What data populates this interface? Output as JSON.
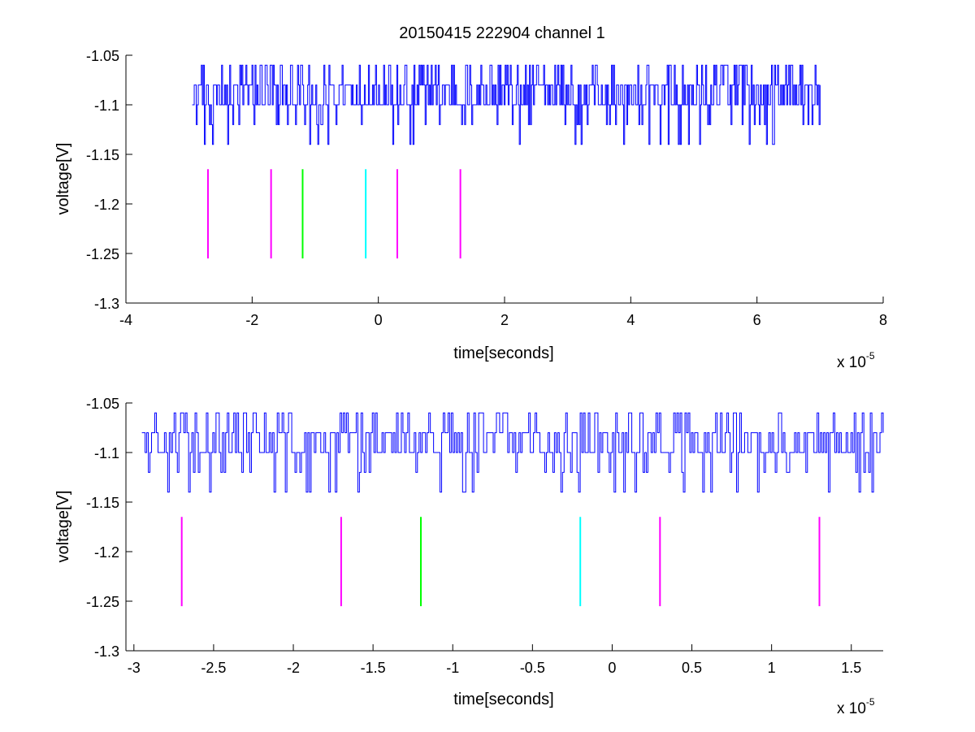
{
  "figure": {
    "title": "20150415 222904 channel 1",
    "background": "#ffffff"
  },
  "chart_data": [
    {
      "type": "line",
      "title": "20150415 222904 channel 1",
      "xlabel": "time[seconds]",
      "ylabel": "voltage[V]",
      "x_multiplier_label": "x 10",
      "x_multiplier_exponent": "-5",
      "xlim": [
        -4,
        8
      ],
      "ylim": [
        -1.3,
        -1.05
      ],
      "xticks": [
        -4,
        -2,
        0,
        2,
        4,
        6,
        8
      ],
      "xtick_labels": [
        "-4",
        "-2",
        "0",
        "2",
        "4",
        "6",
        "8"
      ],
      "yticks": [
        -1.05,
        -1.1,
        -1.15,
        -1.2,
        -1.25,
        -1.3
      ],
      "ytick_labels": [
        "-1.05",
        "-1.1",
        "-1.15",
        "-1.2",
        "-1.25",
        "-1.3"
      ],
      "grid": false,
      "signal": {
        "color": "#0000ff",
        "x_range": [
          -2.95,
          7.0
        ],
        "levels": [
          -1.06,
          -1.08,
          -1.1,
          -1.12,
          -1.14
        ],
        "description_values": "quantized noisy voltage trace between -1.14 and -1.06"
      },
      "markers": [
        {
          "x": -2.7,
          "y_range": [
            -1.255,
            -1.165
          ],
          "color": "#ff00ff"
        },
        {
          "x": -1.7,
          "y_range": [
            -1.255,
            -1.165
          ],
          "color": "#ff00ff"
        },
        {
          "x": -1.2,
          "y_range": [
            -1.255,
            -1.165
          ],
          "color": "#00ff00"
        },
        {
          "x": -0.2,
          "y_range": [
            -1.255,
            -1.165
          ],
          "color": "#00ffff"
        },
        {
          "x": 0.3,
          "y_range": [
            -1.255,
            -1.165
          ],
          "color": "#ff00ff"
        },
        {
          "x": 1.3,
          "y_range": [
            -1.255,
            -1.165
          ],
          "color": "#ff00ff"
        }
      ]
    },
    {
      "type": "line",
      "title": "",
      "xlabel": "time[seconds]",
      "ylabel": "voltage[V]",
      "x_multiplier_label": "x 10",
      "x_multiplier_exponent": "-5",
      "xlim": [
        -3.05,
        1.7
      ],
      "ylim": [
        -1.3,
        -1.05
      ],
      "xticks": [
        -3,
        -2.5,
        -2,
        -1.5,
        -1,
        -0.5,
        0,
        0.5,
        1,
        1.5
      ],
      "xtick_labels": [
        "-3",
        "-2.5",
        "-2",
        "-1.5",
        "-1",
        "-0.5",
        "0",
        "0.5",
        "1",
        "1.5"
      ],
      "yticks": [
        -1.05,
        -1.1,
        -1.15,
        -1.2,
        -1.25,
        -1.3
      ],
      "ytick_labels": [
        "-1.05",
        "-1.1",
        "-1.15",
        "-1.2",
        "-1.25",
        "-1.3"
      ],
      "grid": false,
      "signal": {
        "color": "#0000ff",
        "x_range": [
          -2.95,
          1.7
        ],
        "levels": [
          -1.06,
          -1.08,
          -1.1,
          -1.12,
          -1.14
        ],
        "description_values": "quantized noisy voltage trace between -1.14 and -1.06"
      },
      "markers": [
        {
          "x": -2.7,
          "y_range": [
            -1.255,
            -1.165
          ],
          "color": "#ff00ff"
        },
        {
          "x": -1.7,
          "y_range": [
            -1.255,
            -1.165
          ],
          "color": "#ff00ff"
        },
        {
          "x": -1.2,
          "y_range": [
            -1.255,
            -1.165
          ],
          "color": "#00ff00"
        },
        {
          "x": -0.2,
          "y_range": [
            -1.255,
            -1.165
          ],
          "color": "#00ffff"
        },
        {
          "x": 0.3,
          "y_range": [
            -1.255,
            -1.165
          ],
          "color": "#ff00ff"
        },
        {
          "x": 1.3,
          "y_range": [
            -1.255,
            -1.165
          ],
          "color": "#ff00ff"
        }
      ]
    }
  ]
}
